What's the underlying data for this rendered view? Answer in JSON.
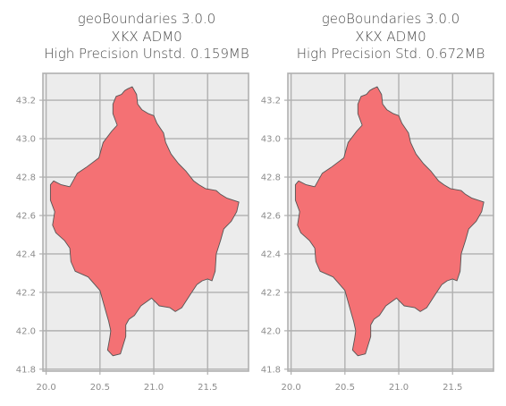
{
  "panels": [
    {
      "title_lines": [
        "geoBoundaries 3.0.0",
        "XKX ADM0",
        "High Precision Unstd. 0.159MB"
      ],
      "x_ticks": [
        "20.0",
        "20.5",
        "21.0",
        "21.5"
      ],
      "y_ticks": [
        "41.8",
        "42.0",
        "42.2",
        "42.4",
        "42.6",
        "42.8",
        "43.0",
        "43.2"
      ]
    },
    {
      "title_lines": [
        "geoBoundaries 3.0.0",
        "XKX ADM0",
        "High Precision Std. 0.672MB"
      ],
      "x_ticks": [
        "20.0",
        "20.5",
        "21.0",
        "21.5"
      ],
      "y_ticks": [
        "41.8",
        "42.0",
        "42.2",
        "42.4",
        "42.6",
        "42.8",
        "43.0",
        "43.2"
      ]
    }
  ],
  "map": {
    "xlim": [
      19.97,
      21.88
    ],
    "ylim": [
      41.79,
      43.34
    ],
    "x_tick_values": [
      20.0,
      20.5,
      21.0,
      21.5
    ],
    "y_tick_values": [
      41.8,
      42.0,
      42.2,
      42.4,
      42.6,
      42.8,
      43.0,
      43.2
    ],
    "grid": true,
    "fill_color": "#f47174",
    "edge_color": "#555555",
    "background_color": "#ececec",
    "grid_color": "#b0b0b0",
    "boundary_lonlat": [
      [
        20.76,
        43.26
      ],
      [
        20.8,
        43.27
      ],
      [
        20.84,
        43.23
      ],
      [
        20.85,
        43.18
      ],
      [
        20.89,
        43.15
      ],
      [
        20.95,
        43.13
      ],
      [
        21.0,
        43.12
      ],
      [
        21.03,
        43.08
      ],
      [
        21.09,
        43.03
      ],
      [
        21.11,
        42.98
      ],
      [
        21.16,
        42.92
      ],
      [
        21.23,
        42.87
      ],
      [
        21.3,
        42.83
      ],
      [
        21.37,
        42.78
      ],
      [
        21.42,
        42.76
      ],
      [
        21.48,
        42.74
      ],
      [
        21.58,
        42.73
      ],
      [
        21.62,
        42.71
      ],
      [
        21.68,
        42.69
      ],
      [
        21.79,
        42.67
      ],
      [
        21.77,
        42.62
      ],
      [
        21.72,
        42.57
      ],
      [
        21.65,
        42.53
      ],
      [
        21.62,
        42.47
      ],
      [
        21.58,
        42.4
      ],
      [
        21.57,
        42.31
      ],
      [
        21.54,
        42.26
      ],
      [
        21.5,
        42.27
      ],
      [
        21.45,
        42.26
      ],
      [
        21.4,
        42.24
      ],
      [
        21.34,
        42.19
      ],
      [
        21.26,
        42.12
      ],
      [
        21.2,
        42.1
      ],
      [
        21.15,
        42.12
      ],
      [
        21.05,
        42.13
      ],
      [
        20.98,
        42.17
      ],
      [
        20.88,
        42.13
      ],
      [
        20.82,
        42.08
      ],
      [
        20.77,
        42.06
      ],
      [
        20.74,
        42.03
      ],
      [
        20.74,
        41.97
      ],
      [
        20.69,
        41.88
      ],
      [
        20.62,
        41.87
      ],
      [
        20.57,
        41.9
      ],
      [
        20.59,
        41.96
      ],
      [
        20.6,
        42.0
      ],
      [
        20.58,
        42.05
      ],
      [
        20.56,
        42.09
      ],
      [
        20.52,
        42.17
      ],
      [
        20.5,
        42.21
      ],
      [
        20.39,
        42.28
      ],
      [
        20.27,
        42.31
      ],
      [
        20.23,
        42.36
      ],
      [
        20.22,
        42.43
      ],
      [
        20.17,
        42.47
      ],
      [
        20.09,
        42.51
      ],
      [
        20.06,
        42.55
      ],
      [
        20.08,
        42.62
      ],
      [
        20.04,
        42.68
      ],
      [
        20.04,
        42.76
      ],
      [
        20.07,
        42.78
      ],
      [
        20.14,
        42.76
      ],
      [
        20.22,
        42.75
      ],
      [
        20.29,
        42.82
      ],
      [
        20.37,
        42.85
      ],
      [
        20.49,
        42.9
      ],
      [
        20.53,
        42.98
      ],
      [
        20.61,
        43.04
      ],
      [
        20.66,
        43.07
      ],
      [
        20.62,
        43.13
      ],
      [
        20.62,
        43.18
      ],
      [
        20.65,
        43.22
      ],
      [
        20.7,
        43.23
      ],
      [
        20.73,
        43.25
      ]
    ]
  }
}
